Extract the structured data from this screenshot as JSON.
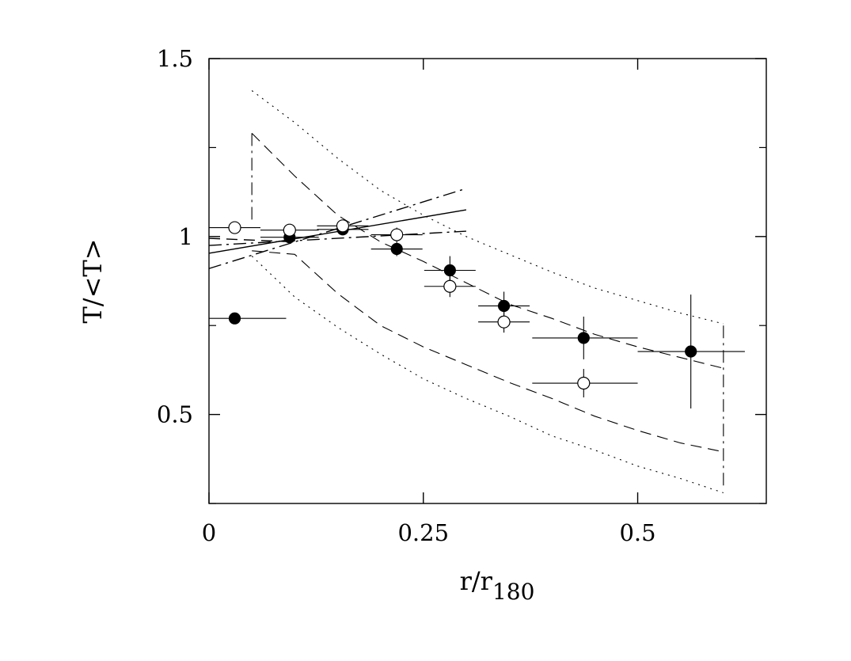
{
  "chart_data": {
    "type": "scatter",
    "title": "",
    "xlabel": "r/r",
    "xlabel_subscript": "180",
    "ylabel": "T/<T>",
    "xlim": [
      0,
      0.65
    ],
    "ylim": [
      0.25,
      1.5
    ],
    "x_ticks": [
      {
        "value": 0,
        "label": "0"
      },
      {
        "value": 0.25,
        "label": "0.25"
      },
      {
        "value": 0.5,
        "label": "0.5"
      }
    ],
    "y_ticks": [
      {
        "value": 0.5,
        "label": "0.5"
      },
      {
        "value": 1,
        "label": "1"
      },
      {
        "value": 1.5,
        "label": "1.5"
      }
    ],
    "grid": false,
    "legend": "none",
    "series": [
      {
        "marker": "filled-circle",
        "color": "#000000",
        "points": [
          {
            "x": 0.03,
            "y": 0.77,
            "xerr": [
              0.03,
              0.06
            ],
            "yerr": [
              0.0,
              0.0
            ]
          },
          {
            "x": 0.094,
            "y": 0.998,
            "xerr": [
              0.034,
              0.034
            ],
            "yerr": [
              0.015,
              0.015
            ]
          },
          {
            "x": 0.156,
            "y": 1.02,
            "xerr": [
              0.03,
              0.03
            ],
            "yerr": [
              0.015,
              0.015
            ]
          },
          {
            "x": 0.219,
            "y": 0.965,
            "xerr": [
              0.03,
              0.03
            ],
            "yerr": [
              0.02,
              0.02
            ]
          },
          {
            "x": 0.281,
            "y": 0.905,
            "xerr": [
              0.03,
              0.03
            ],
            "yerr": [
              0.04,
              0.04
            ]
          },
          {
            "x": 0.344,
            "y": 0.805,
            "xerr": [
              0.03,
              0.03
            ],
            "yerr": [
              0.04,
              0.04
            ]
          },
          {
            "x": 0.437,
            "y": 0.715,
            "xerr": [
              0.06,
              0.063
            ],
            "yerr": [
              0.06,
              0.06
            ]
          },
          {
            "x": 0.562,
            "y": 0.677,
            "xerr": [
              0.062,
              0.063
            ],
            "yerr": [
              0.16,
              0.16
            ]
          }
        ]
      },
      {
        "marker": "open-circle",
        "color": "#000000",
        "points": [
          {
            "x": 0.03,
            "y": 1.025,
            "xerr": [
              0.03,
              0.03
            ],
            "yerr": [
              0.015,
              0.015
            ]
          },
          {
            "x": 0.094,
            "y": 1.018,
            "xerr": [
              0.034,
              0.034
            ],
            "yerr": [
              0.015,
              0.015
            ]
          },
          {
            "x": 0.156,
            "y": 1.03,
            "xerr": [
              0.03,
              0.03
            ],
            "yerr": [
              0.015,
              0.015
            ]
          },
          {
            "x": 0.219,
            "y": 1.005,
            "xerr": [
              0.03,
              0.03
            ],
            "yerr": [
              0.02,
              0.02
            ]
          },
          {
            "x": 0.281,
            "y": 0.86,
            "xerr": [
              0.03,
              0.03
            ],
            "yerr": [
              0.03,
              0.03
            ]
          },
          {
            "x": 0.344,
            "y": 0.76,
            "xerr": [
              0.03,
              0.03
            ],
            "yerr": [
              0.03,
              0.03
            ]
          },
          {
            "x": 0.437,
            "y": 0.588,
            "xerr": [
              0.06,
              0.063
            ],
            "yerr": [
              0.04,
              0.04
            ]
          }
        ]
      }
    ],
    "lines": [
      {
        "style": "solid",
        "x": [
          0,
          0.3
        ],
        "y": [
          0.953,
          1.075
        ]
      },
      {
        "style": "dash-dot",
        "x": [
          0,
          0.3
        ],
        "y": [
          0.91,
          1.135
        ]
      },
      {
        "style": "dash-dot",
        "x": [
          0,
          0.3
        ],
        "y": [
          0.975,
          1.015
        ]
      },
      {
        "style": "dashed",
        "x": [
          0,
          0.1
        ],
        "y": [
          0.995,
          0.985
        ]
      }
    ],
    "bands": [
      {
        "style": "dotted",
        "upper": {
          "x": [
            0.05,
            0.1,
            0.15,
            0.2,
            0.25,
            0.3,
            0.35,
            0.4,
            0.45,
            0.5,
            0.55,
            0.6
          ],
          "y": [
            1.41,
            1.32,
            1.22,
            1.13,
            1.06,
            1.0,
            0.95,
            0.9,
            0.855,
            0.82,
            0.785,
            0.755
          ]
        },
        "lower": {
          "x": [
            0.05,
            0.1,
            0.15,
            0.2,
            0.25,
            0.3,
            0.35,
            0.4,
            0.45,
            0.5,
            0.55,
            0.6
          ],
          "y": [
            0.945,
            0.83,
            0.745,
            0.67,
            0.6,
            0.545,
            0.495,
            0.44,
            0.4,
            0.355,
            0.32,
            0.28
          ]
        }
      },
      {
        "style": "dashed",
        "upper": {
          "x": [
            0.05,
            0.1,
            0.15,
            0.2,
            0.25,
            0.3,
            0.35,
            0.4,
            0.45,
            0.5,
            0.55,
            0.6
          ],
          "y": [
            1.29,
            1.17,
            1.06,
            0.985,
            0.93,
            0.87,
            0.81,
            0.77,
            0.725,
            0.69,
            0.66,
            0.63
          ]
        },
        "lower": {
          "x": [
            0.05,
            0.1,
            0.15,
            0.2,
            0.25,
            0.3,
            0.35,
            0.4,
            0.45,
            0.5,
            0.55,
            0.6
          ],
          "y": [
            0.96,
            0.95,
            0.84,
            0.75,
            0.69,
            0.64,
            0.59,
            0.545,
            0.495,
            0.455,
            0.42,
            0.395
          ]
        }
      }
    ],
    "band_edges": [
      {
        "style": "dash-dot",
        "x": [
          0.05,
          0.05
        ],
        "y": [
          1.29,
          1.04
        ]
      },
      {
        "style": "dash-dot",
        "x": [
          0.6,
          0.6
        ],
        "y": [
          0.75,
          0.295
        ]
      }
    ]
  }
}
